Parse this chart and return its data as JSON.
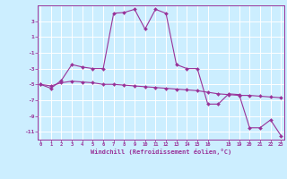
{
  "xlabel": "Windchill (Refroidissement éolien,°C)",
  "background_color": "#cceeff",
  "grid_color": "#ffffff",
  "line_color": "#993399",
  "x_hours": [
    0,
    1,
    2,
    3,
    4,
    5,
    6,
    7,
    8,
    9,
    10,
    11,
    12,
    13,
    14,
    15,
    16,
    17,
    18,
    19,
    20,
    21,
    22,
    23
  ],
  "line1_y": [
    -5.0,
    -5.5,
    -4.5,
    -2.5,
    -2.8,
    -3.0,
    -3.0,
    4.0,
    4.1,
    4.5,
    2.0,
    4.5,
    4.0,
    -2.5,
    -3.0,
    -3.0,
    -7.5,
    -7.5,
    -6.2,
    -6.3,
    -10.5,
    -10.5,
    -9.5,
    -11.5
  ],
  "line2_y": [
    -5.0,
    -5.2,
    -4.8,
    -4.6,
    -4.7,
    -4.8,
    -5.0,
    -5.0,
    -5.1,
    -5.2,
    -5.3,
    -5.4,
    -5.5,
    -5.6,
    -5.7,
    -5.8,
    -6.0,
    -6.2,
    -6.3,
    -6.4,
    -6.4,
    -6.5,
    -6.6,
    -6.7
  ],
  "ylim": [
    -12,
    5
  ],
  "yticks": [
    3,
    1,
    -1,
    -3,
    -5,
    -7,
    -9,
    -11
  ],
  "xticks": [
    0,
    1,
    2,
    3,
    4,
    5,
    6,
    7,
    8,
    9,
    10,
    11,
    12,
    13,
    14,
    15,
    16,
    18,
    19,
    20,
    21,
    22,
    23
  ],
  "xtick_labels": [
    "0",
    "1",
    "2",
    "3",
    "4",
    "5",
    "6",
    "7",
    "8",
    "9",
    "10",
    "11",
    "12",
    "13",
    "14",
    "15",
    "16",
    "18",
    "19",
    "20",
    "21",
    "22",
    "23"
  ]
}
